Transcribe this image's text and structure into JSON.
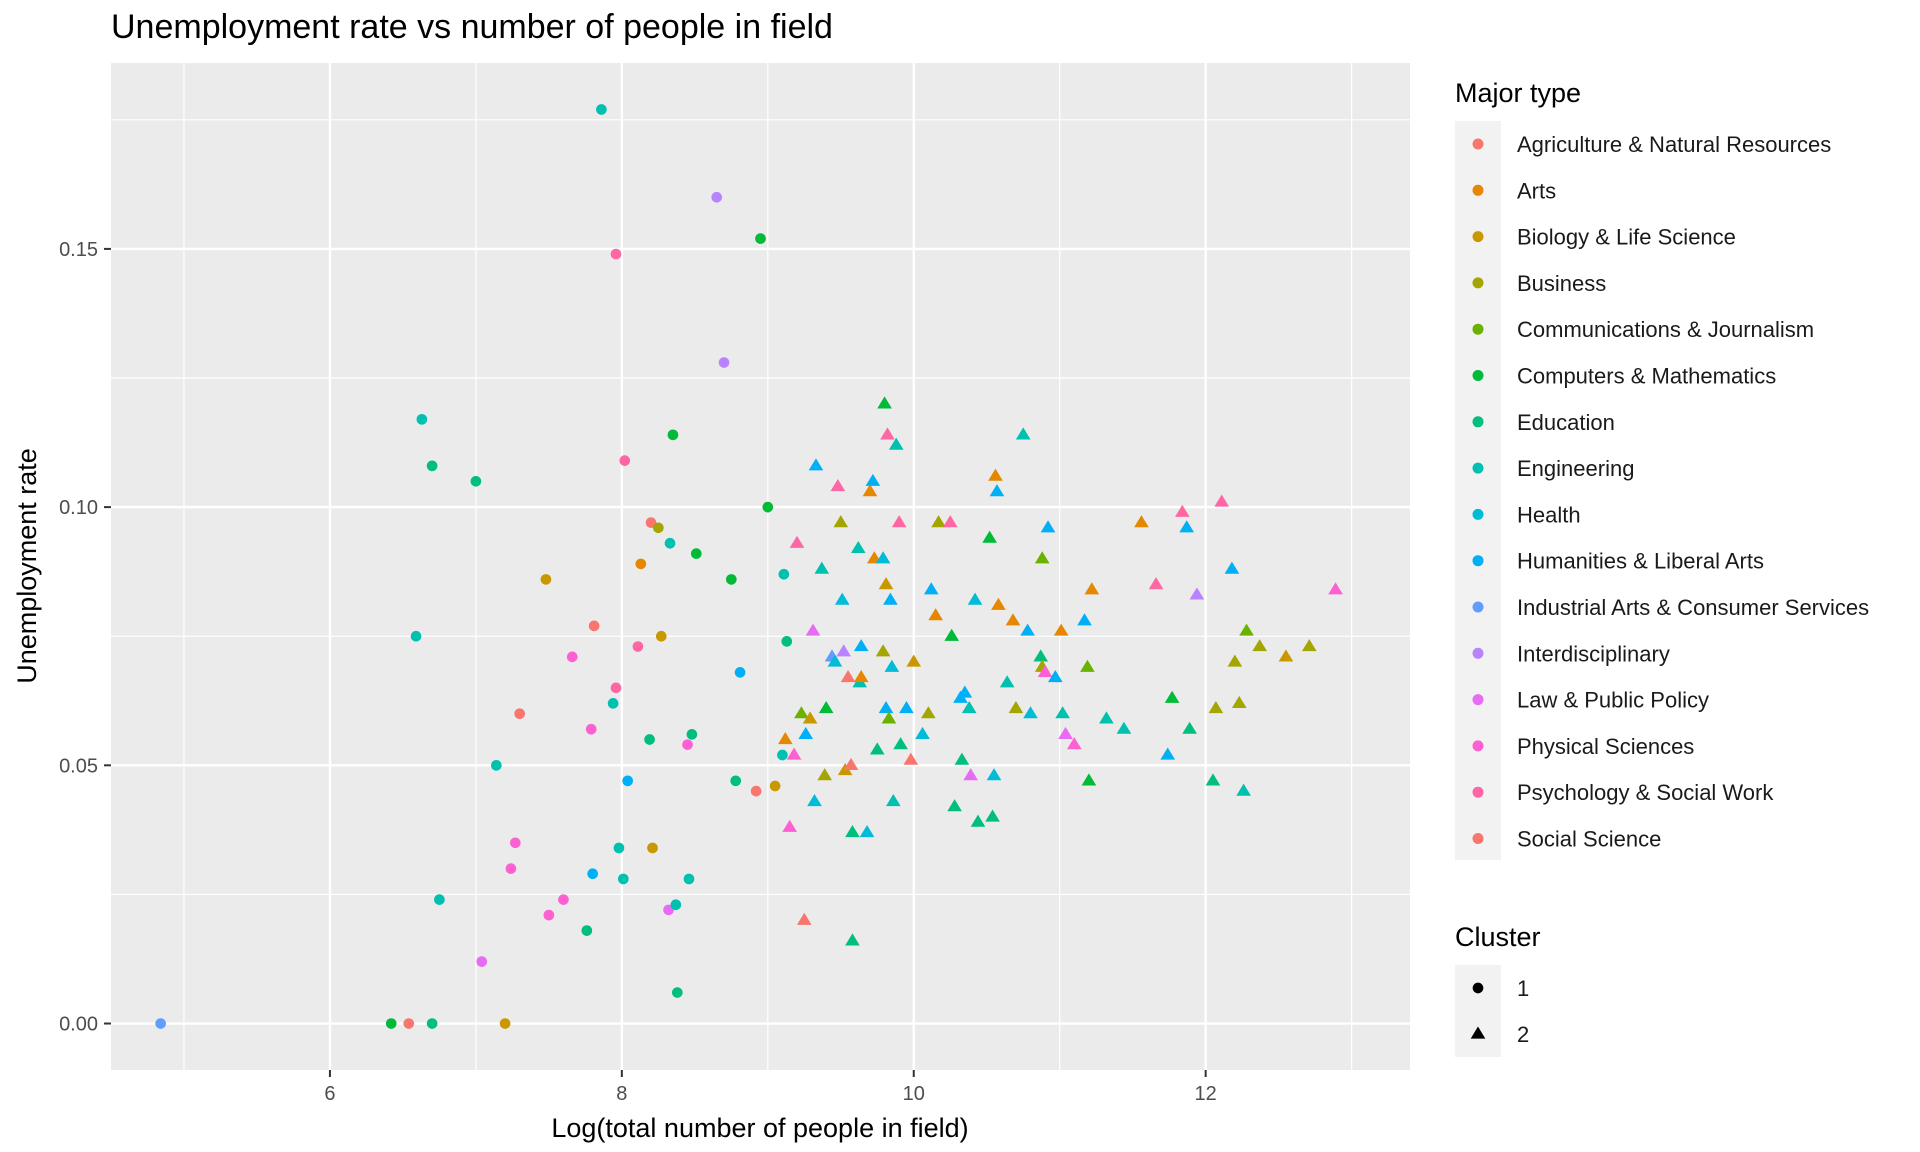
{
  "chart_data": {
    "type": "scatter",
    "title": "Unemployment rate vs number of people in field",
    "xlabel": "Log(total number of people in field)",
    "ylabel": "Unemployment rate",
    "xlim": [
      4.5,
      13.4
    ],
    "ylim": [
      -0.009,
      0.186
    ],
    "x_ticks": [
      {
        "value": 6,
        "label": "6"
      },
      {
        "value": 8,
        "label": "8"
      },
      {
        "value": 10,
        "label": "10"
      },
      {
        "value": 12,
        "label": "12"
      }
    ],
    "y_ticks": [
      {
        "value": 0,
        "label": "0.00"
      },
      {
        "value": 0.05,
        "label": "0.05"
      },
      {
        "value": 0.1,
        "label": "0.10"
      },
      {
        "value": 0.15,
        "label": "0.15"
      }
    ],
    "grid": true,
    "legend_placement": "right",
    "color_legend_title": "Major type",
    "shape_legend_title": "Cluster",
    "categories": [
      {
        "name": "Agriculture & Natural Resources",
        "color": "#F8766D"
      },
      {
        "name": "Arts",
        "color": "#E58700"
      },
      {
        "name": "Biology & Life Science",
        "color": "#C99800"
      },
      {
        "name": "Business",
        "color": "#A3A500"
      },
      {
        "name": "Communications & Journalism",
        "color": "#6BB100"
      },
      {
        "name": "Computers & Mathematics",
        "color": "#00BA38"
      },
      {
        "name": "Education",
        "color": "#00BF7D"
      },
      {
        "name": "Engineering",
        "color": "#00C0AF"
      },
      {
        "name": "Health",
        "color": "#00BCD8"
      },
      {
        "name": "Humanities & Liberal Arts",
        "color": "#00B0F6"
      },
      {
        "name": "Industrial Arts & Consumer Services",
        "color": "#619CFF"
      },
      {
        "name": "Interdisciplinary",
        "color": "#B983FF"
      },
      {
        "name": "Law & Public Policy",
        "color": "#E76BF3"
      },
      {
        "name": "Physical Sciences",
        "color": "#FD61D1"
      },
      {
        "name": "Psychology & Social Work",
        "color": "#FF67A4"
      },
      {
        "name": "Social Science",
        "color": "#F8766D"
      }
    ],
    "clusters": [
      {
        "name": "1",
        "shape": "circle"
      },
      {
        "name": "2",
        "shape": "triangle"
      }
    ],
    "points": [
      {
        "x": 4.84,
        "y": 0.0,
        "c": 10,
        "k": 1
      },
      {
        "x": 6.42,
        "y": 0.0,
        "c": 5,
        "k": 1
      },
      {
        "x": 6.54,
        "y": 0.0,
        "c": 0,
        "k": 1
      },
      {
        "x": 6.7,
        "y": 0.0,
        "c": 6,
        "k": 1
      },
      {
        "x": 7.2,
        "y": 0.0,
        "c": 2,
        "k": 1
      },
      {
        "x": 6.59,
        "y": 0.075,
        "c": 7,
        "k": 1
      },
      {
        "x": 6.63,
        "y": 0.117,
        "c": 7,
        "k": 1
      },
      {
        "x": 6.7,
        "y": 0.108,
        "c": 6,
        "k": 1
      },
      {
        "x": 6.75,
        "y": 0.024,
        "c": 7,
        "k": 1
      },
      {
        "x": 7.0,
        "y": 0.105,
        "c": 6,
        "k": 1
      },
      {
        "x": 7.04,
        "y": 0.012,
        "c": 12,
        "k": 1
      },
      {
        "x": 7.14,
        "y": 0.05,
        "c": 7,
        "k": 1
      },
      {
        "x": 7.24,
        "y": 0.03,
        "c": 13,
        "k": 1
      },
      {
        "x": 7.27,
        "y": 0.035,
        "c": 13,
        "k": 1
      },
      {
        "x": 7.3,
        "y": 0.06,
        "c": 0,
        "k": 1
      },
      {
        "x": 7.48,
        "y": 0.086,
        "c": 2,
        "k": 1
      },
      {
        "x": 7.5,
        "y": 0.021,
        "c": 13,
        "k": 1
      },
      {
        "x": 7.6,
        "y": 0.024,
        "c": 13,
        "k": 1
      },
      {
        "x": 7.66,
        "y": 0.071,
        "c": 13,
        "k": 1
      },
      {
        "x": 7.76,
        "y": 0.018,
        "c": 6,
        "k": 1
      },
      {
        "x": 7.79,
        "y": 0.057,
        "c": 13,
        "k": 1
      },
      {
        "x": 7.8,
        "y": 0.029,
        "c": 9,
        "k": 1
      },
      {
        "x": 7.81,
        "y": 0.077,
        "c": 0,
        "k": 1
      },
      {
        "x": 7.86,
        "y": 0.177,
        "c": 7,
        "k": 1
      },
      {
        "x": 7.94,
        "y": 0.062,
        "c": 7,
        "k": 1
      },
      {
        "x": 7.96,
        "y": 0.149,
        "c": 14,
        "k": 1
      },
      {
        "x": 7.96,
        "y": 0.065,
        "c": 14,
        "k": 1
      },
      {
        "x": 7.98,
        "y": 0.034,
        "c": 7,
        "k": 1
      },
      {
        "x": 8.01,
        "y": 0.028,
        "c": 7,
        "k": 1
      },
      {
        "x": 8.02,
        "y": 0.109,
        "c": 14,
        "k": 1
      },
      {
        "x": 8.04,
        "y": 0.047,
        "c": 9,
        "k": 1
      },
      {
        "x": 8.11,
        "y": 0.073,
        "c": 14,
        "k": 1
      },
      {
        "x": 8.13,
        "y": 0.089,
        "c": 1,
        "k": 1
      },
      {
        "x": 8.19,
        "y": 0.055,
        "c": 6,
        "k": 1
      },
      {
        "x": 8.2,
        "y": 0.097,
        "c": 0,
        "k": 1
      },
      {
        "x": 8.21,
        "y": 0.034,
        "c": 2,
        "k": 1
      },
      {
        "x": 8.25,
        "y": 0.096,
        "c": 3,
        "k": 1
      },
      {
        "x": 8.27,
        "y": 0.075,
        "c": 2,
        "k": 1
      },
      {
        "x": 8.32,
        "y": 0.022,
        "c": 12,
        "k": 1
      },
      {
        "x": 8.33,
        "y": 0.093,
        "c": 7,
        "k": 1
      },
      {
        "x": 8.35,
        "y": 0.114,
        "c": 5,
        "k": 1
      },
      {
        "x": 8.37,
        "y": 0.023,
        "c": 7,
        "k": 1
      },
      {
        "x": 8.38,
        "y": 0.006,
        "c": 6,
        "k": 1
      },
      {
        "x": 8.45,
        "y": 0.054,
        "c": 13,
        "k": 1
      },
      {
        "x": 8.46,
        "y": 0.028,
        "c": 7,
        "k": 1
      },
      {
        "x": 8.48,
        "y": 0.056,
        "c": 6,
        "k": 1
      },
      {
        "x": 8.51,
        "y": 0.091,
        "c": 5,
        "k": 1
      },
      {
        "x": 8.65,
        "y": 0.16,
        "c": 11,
        "k": 1
      },
      {
        "x": 8.7,
        "y": 0.128,
        "c": 11,
        "k": 1
      },
      {
        "x": 8.75,
        "y": 0.086,
        "c": 5,
        "k": 1
      },
      {
        "x": 8.78,
        "y": 0.047,
        "c": 6,
        "k": 1
      },
      {
        "x": 8.81,
        "y": 0.068,
        "c": 9,
        "k": 1
      },
      {
        "x": 8.92,
        "y": 0.045,
        "c": 0,
        "k": 1
      },
      {
        "x": 8.95,
        "y": 0.152,
        "c": 5,
        "k": 1
      },
      {
        "x": 9.0,
        "y": 0.1,
        "c": 5,
        "k": 1
      },
      {
        "x": 9.05,
        "y": 0.046,
        "c": 2,
        "k": 1
      },
      {
        "x": 9.1,
        "y": 0.052,
        "c": 7,
        "k": 1
      },
      {
        "x": 9.11,
        "y": 0.087,
        "c": 7,
        "k": 1
      },
      {
        "x": 9.13,
        "y": 0.074,
        "c": 6,
        "k": 1
      },
      {
        "x": 9.12,
        "y": 0.055,
        "c": 1,
        "k": 2
      },
      {
        "x": 9.15,
        "y": 0.038,
        "c": 13,
        "k": 2
      },
      {
        "x": 9.18,
        "y": 0.052,
        "c": 13,
        "k": 2
      },
      {
        "x": 9.2,
        "y": 0.093,
        "c": 14,
        "k": 2
      },
      {
        "x": 9.23,
        "y": 0.06,
        "c": 4,
        "k": 2
      },
      {
        "x": 9.25,
        "y": 0.02,
        "c": 0,
        "k": 2
      },
      {
        "x": 9.26,
        "y": 0.056,
        "c": 9,
        "k": 2
      },
      {
        "x": 9.29,
        "y": 0.059,
        "c": 2,
        "k": 2
      },
      {
        "x": 9.31,
        "y": 0.076,
        "c": 12,
        "k": 2
      },
      {
        "x": 9.32,
        "y": 0.043,
        "c": 8,
        "k": 2
      },
      {
        "x": 9.33,
        "y": 0.108,
        "c": 9,
        "k": 2
      },
      {
        "x": 9.37,
        "y": 0.088,
        "c": 7,
        "k": 2
      },
      {
        "x": 9.39,
        "y": 0.048,
        "c": 3,
        "k": 2
      },
      {
        "x": 9.4,
        "y": 0.061,
        "c": 5,
        "k": 2
      },
      {
        "x": 9.44,
        "y": 0.071,
        "c": 10,
        "k": 2
      },
      {
        "x": 9.46,
        "y": 0.07,
        "c": 8,
        "k": 2
      },
      {
        "x": 9.48,
        "y": 0.104,
        "c": 14,
        "k": 2
      },
      {
        "x": 9.5,
        "y": 0.097,
        "c": 3,
        "k": 2
      },
      {
        "x": 9.51,
        "y": 0.082,
        "c": 8,
        "k": 2
      },
      {
        "x": 9.52,
        "y": 0.072,
        "c": 11,
        "k": 2
      },
      {
        "x": 9.53,
        "y": 0.049,
        "c": 2,
        "k": 2
      },
      {
        "x": 9.55,
        "y": 0.067,
        "c": 0,
        "k": 2
      },
      {
        "x": 9.57,
        "y": 0.05,
        "c": 0,
        "k": 2
      },
      {
        "x": 9.58,
        "y": 0.037,
        "c": 6,
        "k": 2
      },
      {
        "x": 9.58,
        "y": 0.016,
        "c": 6,
        "k": 2
      },
      {
        "x": 9.62,
        "y": 0.092,
        "c": 7,
        "k": 2
      },
      {
        "x": 9.63,
        "y": 0.066,
        "c": 7,
        "k": 2
      },
      {
        "x": 9.64,
        "y": 0.073,
        "c": 9,
        "k": 2
      },
      {
        "x": 9.64,
        "y": 0.067,
        "c": 1,
        "k": 2
      },
      {
        "x": 9.68,
        "y": 0.037,
        "c": 8,
        "k": 2
      },
      {
        "x": 9.7,
        "y": 0.103,
        "c": 1,
        "k": 2
      },
      {
        "x": 9.72,
        "y": 0.105,
        "c": 9,
        "k": 2
      },
      {
        "x": 9.73,
        "y": 0.09,
        "c": 1,
        "k": 2
      },
      {
        "x": 9.75,
        "y": 0.053,
        "c": 6,
        "k": 2
      },
      {
        "x": 9.79,
        "y": 0.09,
        "c": 8,
        "k": 2
      },
      {
        "x": 9.79,
        "y": 0.072,
        "c": 3,
        "k": 2
      },
      {
        "x": 9.8,
        "y": 0.12,
        "c": 5,
        "k": 2
      },
      {
        "x": 9.81,
        "y": 0.085,
        "c": 2,
        "k": 2
      },
      {
        "x": 9.81,
        "y": 0.061,
        "c": 9,
        "k": 2
      },
      {
        "x": 9.82,
        "y": 0.114,
        "c": 14,
        "k": 2
      },
      {
        "x": 9.83,
        "y": 0.059,
        "c": 4,
        "k": 2
      },
      {
        "x": 9.84,
        "y": 0.082,
        "c": 9,
        "k": 2
      },
      {
        "x": 9.85,
        "y": 0.069,
        "c": 8,
        "k": 2
      },
      {
        "x": 9.86,
        "y": 0.043,
        "c": 7,
        "k": 2
      },
      {
        "x": 9.88,
        "y": 0.112,
        "c": 7,
        "k": 2
      },
      {
        "x": 9.9,
        "y": 0.097,
        "c": 14,
        "k": 2
      },
      {
        "x": 9.91,
        "y": 0.054,
        "c": 6,
        "k": 2
      },
      {
        "x": 9.95,
        "y": 0.061,
        "c": 9,
        "k": 2
      },
      {
        "x": 9.98,
        "y": 0.051,
        "c": 0,
        "k": 2
      },
      {
        "x": 10.0,
        "y": 0.07,
        "c": 2,
        "k": 2
      },
      {
        "x": 10.06,
        "y": 0.056,
        "c": 8,
        "k": 2
      },
      {
        "x": 10.1,
        "y": 0.06,
        "c": 3,
        "k": 2
      },
      {
        "x": 10.12,
        "y": 0.084,
        "c": 9,
        "k": 2
      },
      {
        "x": 10.15,
        "y": 0.079,
        "c": 1,
        "k": 2
      },
      {
        "x": 10.17,
        "y": 0.097,
        "c": 3,
        "k": 2
      },
      {
        "x": 10.25,
        "y": 0.097,
        "c": 14,
        "k": 2
      },
      {
        "x": 10.26,
        "y": 0.075,
        "c": 5,
        "k": 2
      },
      {
        "x": 10.28,
        "y": 0.042,
        "c": 6,
        "k": 2
      },
      {
        "x": 10.32,
        "y": 0.063,
        "c": 9,
        "k": 2
      },
      {
        "x": 10.33,
        "y": 0.051,
        "c": 6,
        "k": 2
      },
      {
        "x": 10.35,
        "y": 0.064,
        "c": 9,
        "k": 2
      },
      {
        "x": 10.38,
        "y": 0.061,
        "c": 7,
        "k": 2
      },
      {
        "x": 10.39,
        "y": 0.048,
        "c": 12,
        "k": 2
      },
      {
        "x": 10.42,
        "y": 0.082,
        "c": 8,
        "k": 2
      },
      {
        "x": 10.44,
        "y": 0.039,
        "c": 6,
        "k": 2
      },
      {
        "x": 10.52,
        "y": 0.094,
        "c": 5,
        "k": 2
      },
      {
        "x": 10.54,
        "y": 0.04,
        "c": 6,
        "k": 2
      },
      {
        "x": 10.55,
        "y": 0.048,
        "c": 8,
        "k": 2
      },
      {
        "x": 10.56,
        "y": 0.106,
        "c": 1,
        "k": 2
      },
      {
        "x": 10.57,
        "y": 0.103,
        "c": 9,
        "k": 2
      },
      {
        "x": 10.58,
        "y": 0.081,
        "c": 1,
        "k": 2
      },
      {
        "x": 10.64,
        "y": 0.066,
        "c": 7,
        "k": 2
      },
      {
        "x": 10.68,
        "y": 0.078,
        "c": 1,
        "k": 2
      },
      {
        "x": 10.7,
        "y": 0.061,
        "c": 3,
        "k": 2
      },
      {
        "x": 10.75,
        "y": 0.114,
        "c": 7,
        "k": 2
      },
      {
        "x": 10.78,
        "y": 0.076,
        "c": 9,
        "k": 2
      },
      {
        "x": 10.8,
        "y": 0.06,
        "c": 8,
        "k": 2
      },
      {
        "x": 10.87,
        "y": 0.071,
        "c": 6,
        "k": 2
      },
      {
        "x": 10.88,
        "y": 0.09,
        "c": 4,
        "k": 2
      },
      {
        "x": 10.88,
        "y": 0.069,
        "c": 3,
        "k": 2
      },
      {
        "x": 10.9,
        "y": 0.068,
        "c": 13,
        "k": 2
      },
      {
        "x": 10.92,
        "y": 0.096,
        "c": 9,
        "k": 2
      },
      {
        "x": 10.97,
        "y": 0.067,
        "c": 9,
        "k": 2
      },
      {
        "x": 11.01,
        "y": 0.076,
        "c": 1,
        "k": 2
      },
      {
        "x": 11.02,
        "y": 0.06,
        "c": 7,
        "k": 2
      },
      {
        "x": 11.04,
        "y": 0.056,
        "c": 12,
        "k": 2
      },
      {
        "x": 11.1,
        "y": 0.054,
        "c": 13,
        "k": 2
      },
      {
        "x": 11.17,
        "y": 0.078,
        "c": 9,
        "k": 2
      },
      {
        "x": 11.19,
        "y": 0.069,
        "c": 4,
        "k": 2
      },
      {
        "x": 11.2,
        "y": 0.047,
        "c": 5,
        "k": 2
      },
      {
        "x": 11.22,
        "y": 0.084,
        "c": 1,
        "k": 2
      },
      {
        "x": 11.32,
        "y": 0.059,
        "c": 7,
        "k": 2
      },
      {
        "x": 11.44,
        "y": 0.057,
        "c": 7,
        "k": 2
      },
      {
        "x": 11.56,
        "y": 0.097,
        "c": 1,
        "k": 2
      },
      {
        "x": 11.66,
        "y": 0.085,
        "c": 14,
        "k": 2
      },
      {
        "x": 11.74,
        "y": 0.052,
        "c": 9,
        "k": 2
      },
      {
        "x": 11.77,
        "y": 0.063,
        "c": 5,
        "k": 2
      },
      {
        "x": 11.84,
        "y": 0.099,
        "c": 14,
        "k": 2
      },
      {
        "x": 11.87,
        "y": 0.096,
        "c": 9,
        "k": 2
      },
      {
        "x": 11.89,
        "y": 0.057,
        "c": 6,
        "k": 2
      },
      {
        "x": 11.94,
        "y": 0.083,
        "c": 11,
        "k": 2
      },
      {
        "x": 12.05,
        "y": 0.047,
        "c": 6,
        "k": 2
      },
      {
        "x": 12.07,
        "y": 0.061,
        "c": 3,
        "k": 2
      },
      {
        "x": 12.11,
        "y": 0.101,
        "c": 14,
        "k": 2
      },
      {
        "x": 12.18,
        "y": 0.088,
        "c": 9,
        "k": 2
      },
      {
        "x": 12.2,
        "y": 0.07,
        "c": 3,
        "k": 2
      },
      {
        "x": 12.23,
        "y": 0.062,
        "c": 3,
        "k": 2
      },
      {
        "x": 12.26,
        "y": 0.045,
        "c": 7,
        "k": 2
      },
      {
        "x": 12.28,
        "y": 0.076,
        "c": 4,
        "k": 2
      },
      {
        "x": 12.37,
        "y": 0.073,
        "c": 3,
        "k": 2
      },
      {
        "x": 12.55,
        "y": 0.071,
        "c": 2,
        "k": 2
      },
      {
        "x": 12.71,
        "y": 0.073,
        "c": 3,
        "k": 2
      },
      {
        "x": 12.89,
        "y": 0.084,
        "c": 13,
        "k": 2
      }
    ]
  }
}
